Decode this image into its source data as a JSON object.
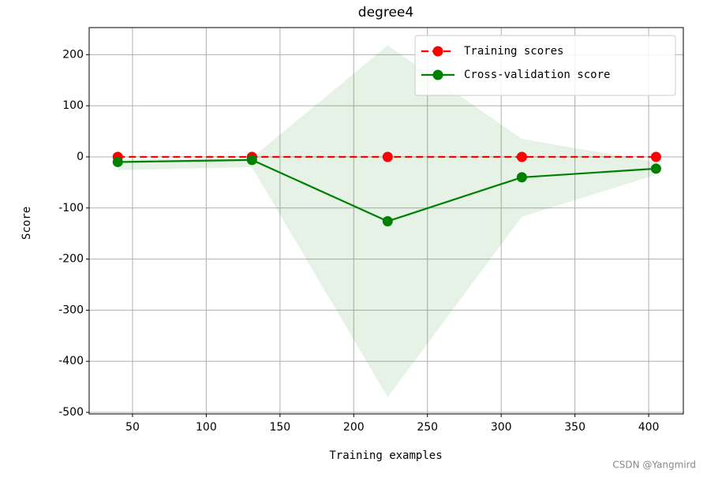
{
  "chart_data": {
    "type": "line",
    "title": "degree4",
    "x_label": "Training examples",
    "y_label": "Score",
    "x": [
      40,
      131,
      223,
      314,
      405
    ],
    "series": [
      {
        "name": "Training scores",
        "color": "#ff0000",
        "dash": true,
        "values": [
          0,
          0,
          0,
          0,
          0
        ],
        "band_lower": [
          0,
          0,
          0,
          0,
          0
        ],
        "band_upper": [
          0,
          0,
          0,
          0,
          0
        ]
      },
      {
        "name": "Cross-validation score",
        "color": "#008000",
        "dash": false,
        "values": [
          -10,
          -6,
          -126,
          -40,
          -23
        ],
        "band_lower": [
          -26,
          -20,
          -470,
          -117,
          -35
        ],
        "band_upper": [
          -5,
          -2,
          218,
          35,
          -10
        ]
      }
    ],
    "xlim": [
      20.6,
      423.5
    ],
    "ylim": [
      -503,
      253
    ],
    "xticks": [
      50,
      100,
      150,
      200,
      250,
      300,
      350,
      400
    ],
    "yticks": [
      -500,
      -400,
      -300,
      -200,
      -100,
      0,
      100,
      200
    ],
    "grid": true,
    "legend": "upper right",
    "watermark": "CSDN @Yangmird"
  }
}
